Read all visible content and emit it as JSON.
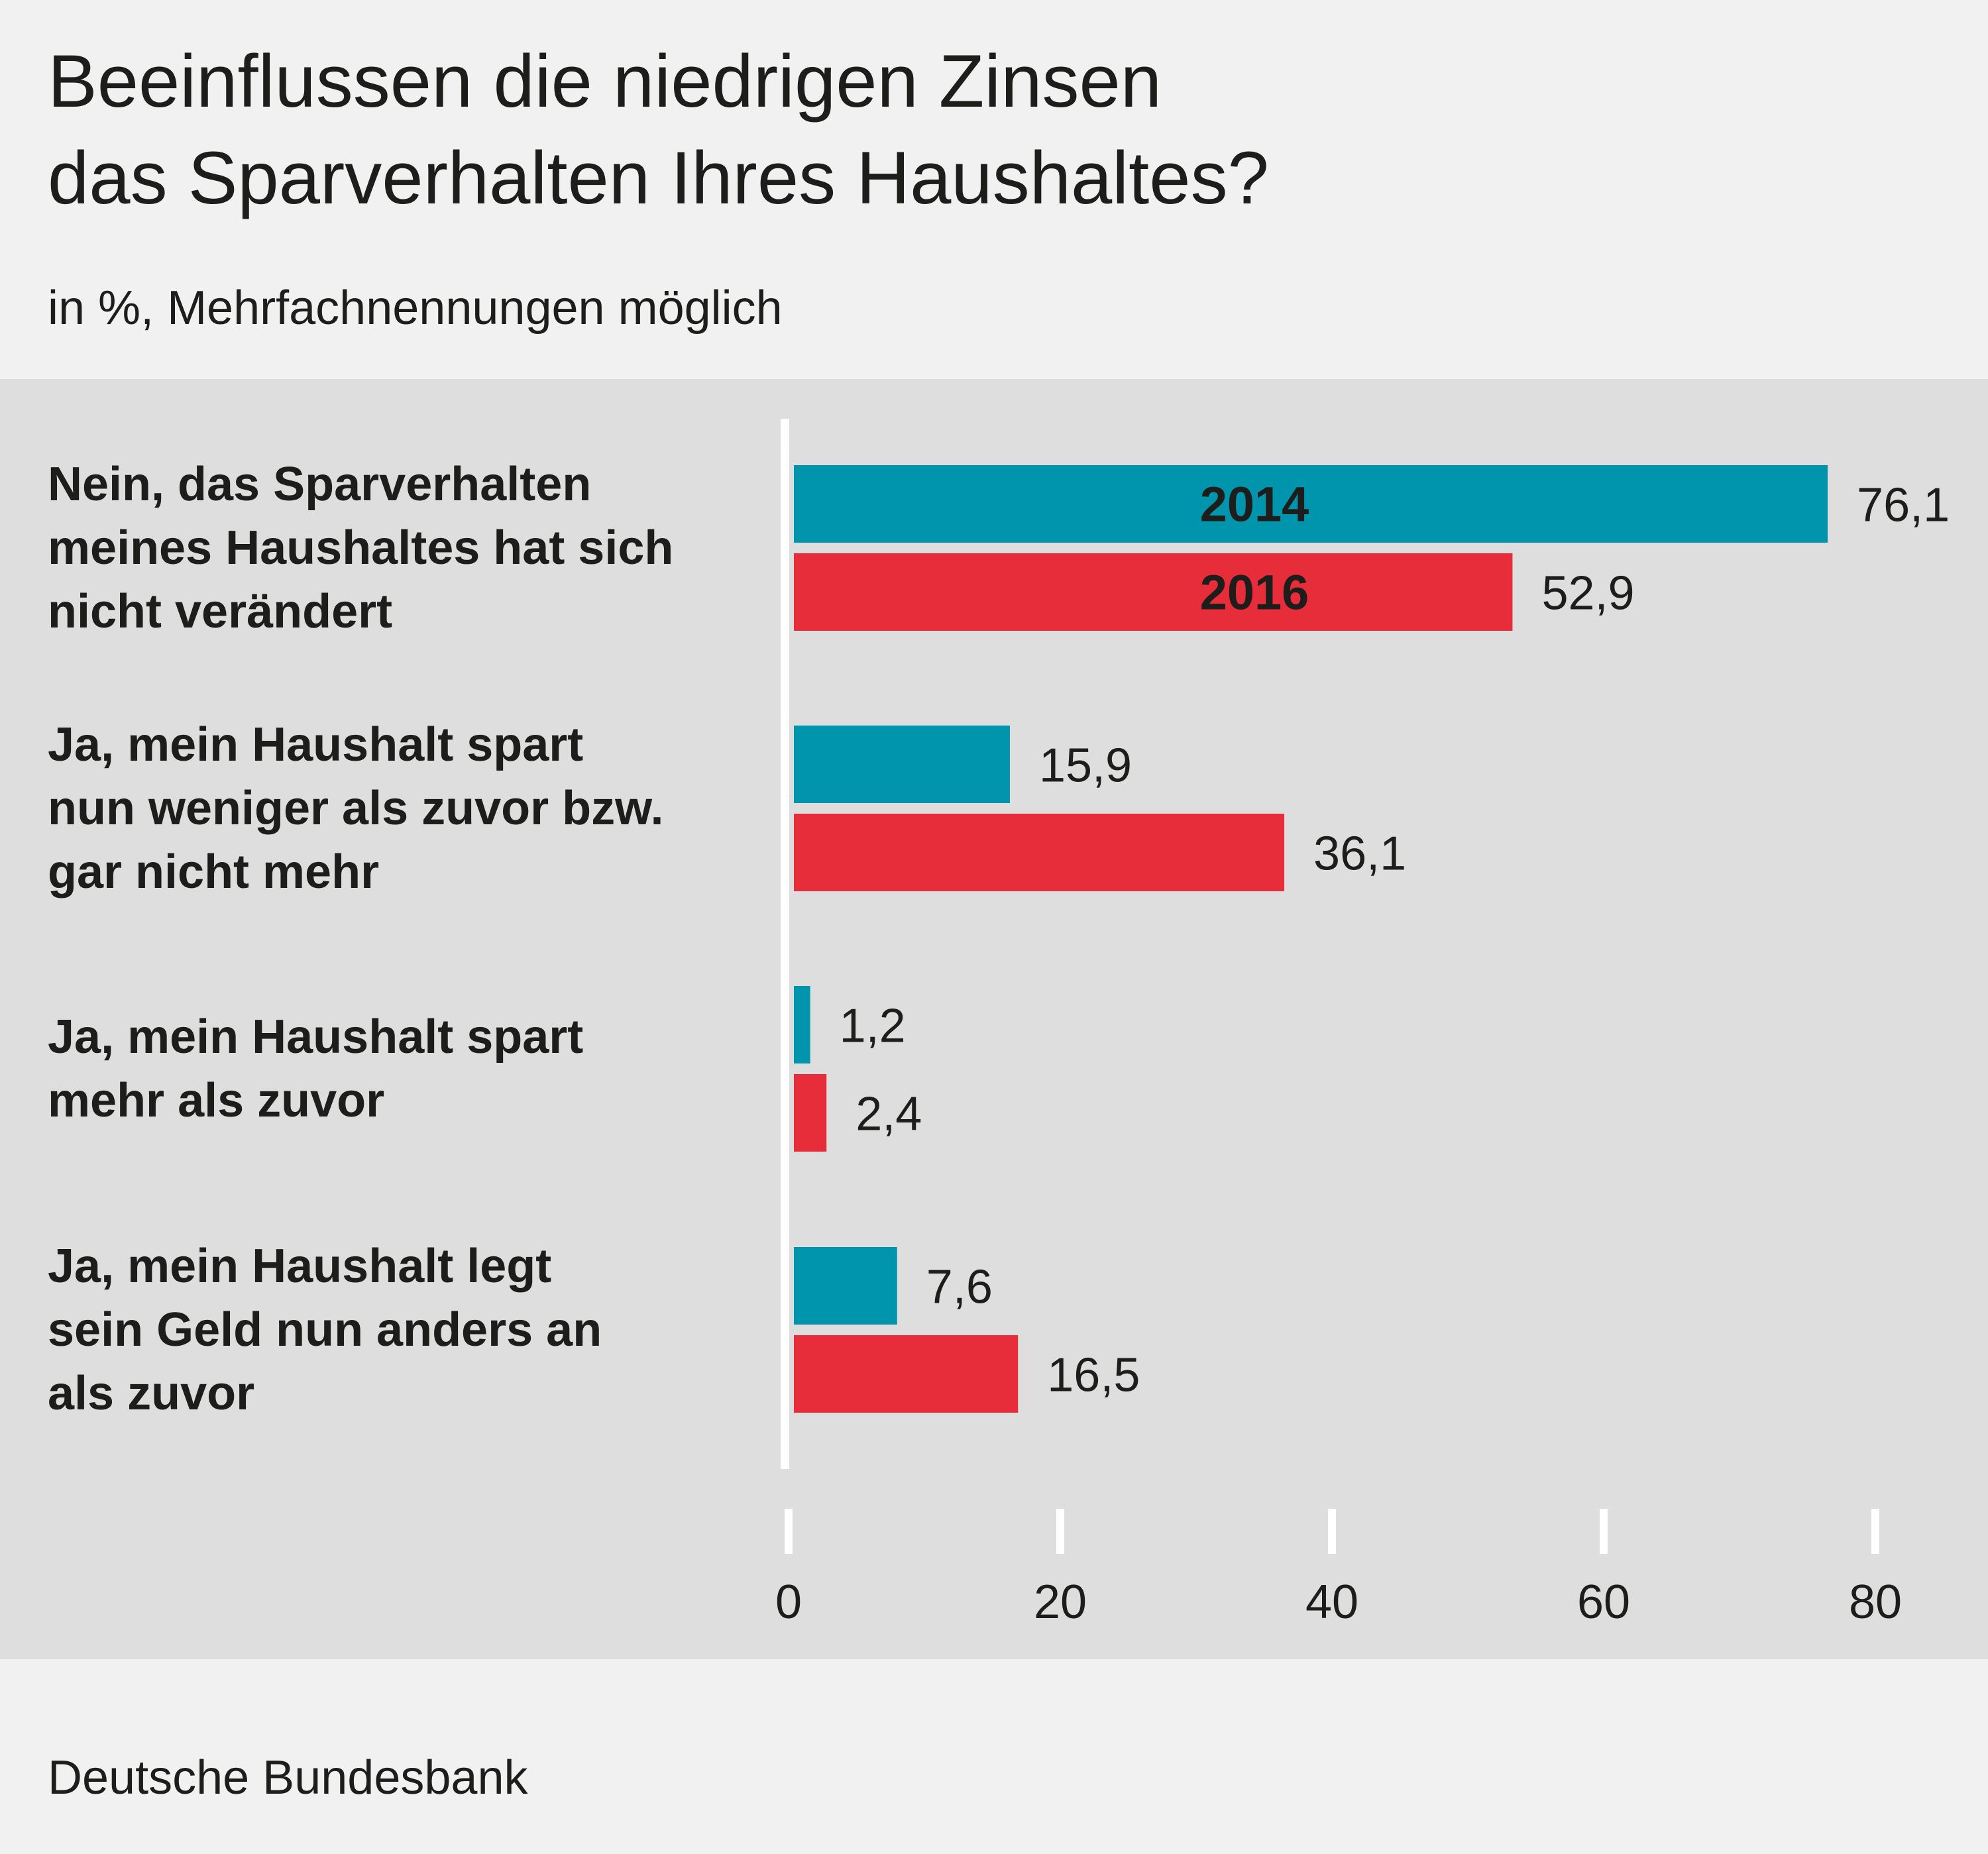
{
  "title_lines": [
    "Beeinflussen die niedrigen Zinsen",
    "das Sparverhalten Ihres Haushaltes?"
  ],
  "subtitle": "in %, Mehrfachnennungen möglich",
  "source": "Deutsche Bundesbank",
  "colors": {
    "series_2014": "#0095ad",
    "series_2016": "#e62d39",
    "plot_bg": "#dedede",
    "page_bg": "#f1f1f1",
    "axis": "#ffffff"
  },
  "chart_data": {
    "type": "bar",
    "orientation": "horizontal",
    "categories": [
      [
        "Nein, das Sparverhalten",
        "meines Haushaltes hat sich",
        "nicht verändert"
      ],
      [
        "Ja, mein Haushalt spart",
        "nun weniger als zuvor bzw.",
        "gar nicht mehr"
      ],
      [
        "Ja, mein Haushalt spart",
        "mehr als zuvor"
      ],
      [
        "Ja, mein Haushalt legt",
        "sein Geld nun anders an",
        "als zuvor"
      ]
    ],
    "series": [
      {
        "name": "2014",
        "values": [
          76.1,
          15.9,
          1.2,
          7.6
        ],
        "labels": [
          "76,1",
          "15,9",
          "1,2",
          "7,6"
        ]
      },
      {
        "name": "2016",
        "values": [
          52.9,
          36.1,
          2.4,
          16.5
        ],
        "labels": [
          "52,9",
          "36,1",
          "2,4",
          "16,5"
        ]
      }
    ],
    "xlim": [
      0,
      80
    ],
    "xticks": [
      0,
      20,
      40,
      60,
      80
    ],
    "xtick_labels": [
      "0",
      "20",
      "40",
      "60",
      "80"
    ],
    "legend": "inside first bar pair",
    "grid": false
  }
}
